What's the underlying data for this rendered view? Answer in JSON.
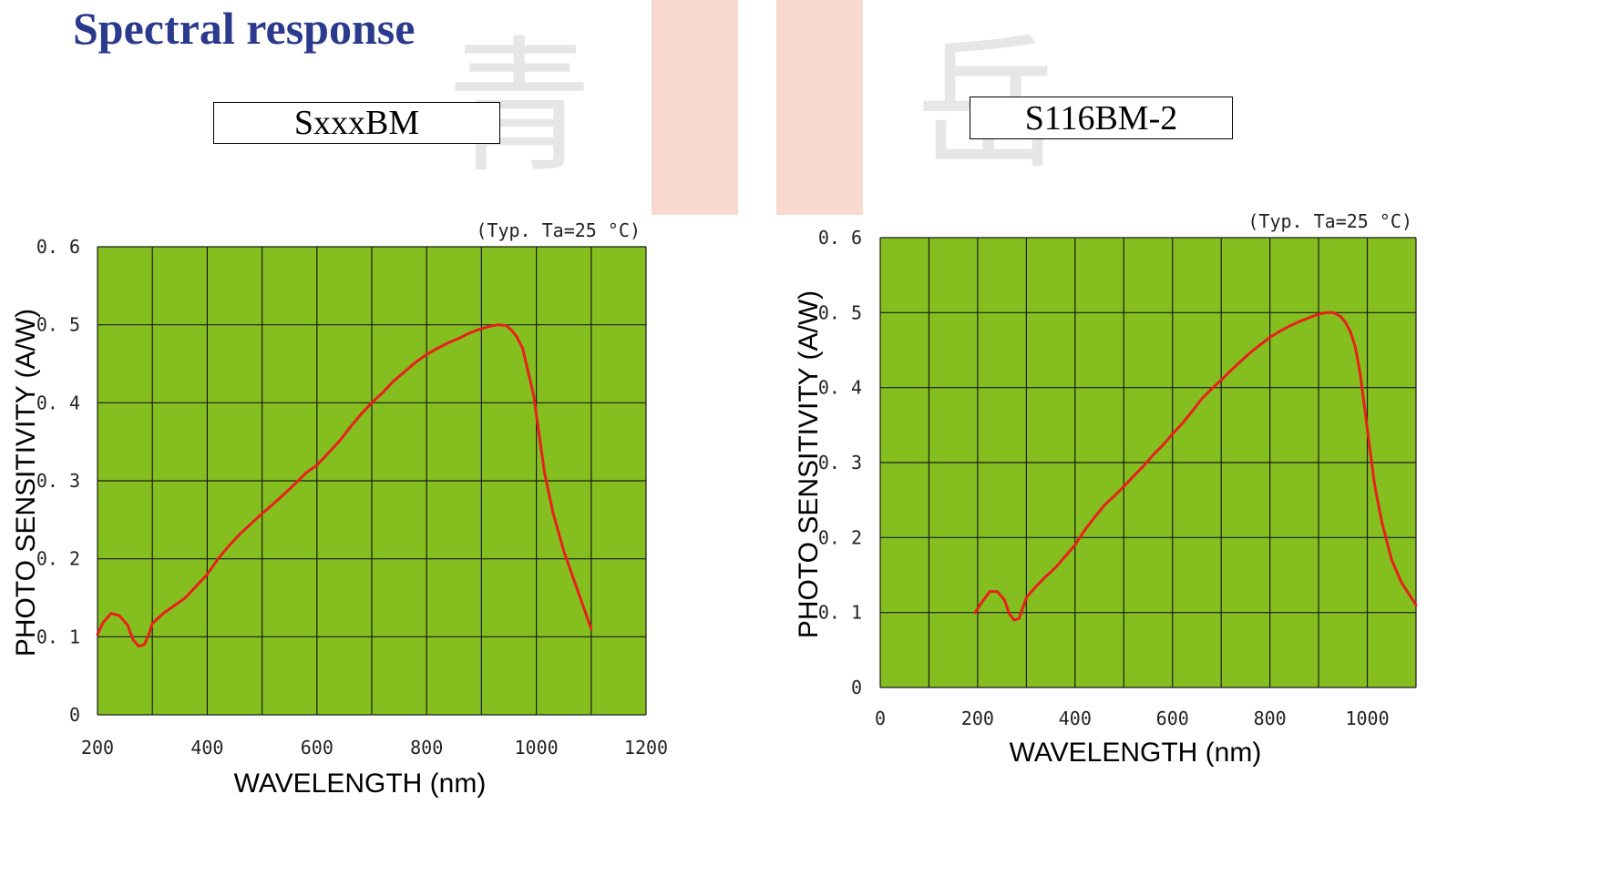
{
  "title": "Spectral response",
  "watermark": {
    "chars": [
      "青",
      "岳"
    ],
    "color": "#f9d9cf"
  },
  "colors": {
    "plot_bg": "#85bf1f",
    "grid": "#1a1a1a",
    "curve": "#e8201c",
    "title": "#2b3a8c"
  },
  "chart_data": [
    {
      "type": "line",
      "model": "SxxxBM",
      "condition": "(Typ.  Ta=25 °C)",
      "xlabel": "WAVELENGTH  (nm)",
      "ylabel": "PHOTO SENSITIVITY (A/W)",
      "xlim": [
        200,
        1200
      ],
      "ylim": [
        0,
        0.6
      ],
      "x_ticks": [
        200,
        400,
        600,
        800,
        1000,
        1200
      ],
      "x_tick_labels": [
        "200",
        "400",
        "600",
        "800",
        "1000",
        "1200"
      ],
      "y_ticks": [
        0,
        0.1,
        0.2,
        0.3,
        0.4,
        0.5,
        0.6
      ],
      "y_tick_labels": [
        "0",
        "0. 1",
        "0. 2",
        "0. 3",
        "0. 4",
        "0. 5",
        "0. 6"
      ],
      "grid_x_step": 100,
      "grid": true,
      "series": [
        {
          "x": [
            200,
            210,
            225,
            240,
            255,
            265,
            275,
            285,
            292,
            300,
            320,
            340,
            360,
            380,
            400,
            420,
            440,
            460,
            480,
            500,
            520,
            540,
            560,
            580,
            600,
            620,
            640,
            660,
            680,
            700,
            720,
            740,
            760,
            780,
            800,
            820,
            840,
            860,
            880,
            900,
            915,
            930,
            945,
            955,
            965,
            975,
            985,
            995,
            1005,
            1015,
            1030,
            1050,
            1070,
            1090,
            1100
          ],
          "y": [
            0.103,
            0.118,
            0.13,
            0.127,
            0.115,
            0.096,
            0.088,
            0.09,
            0.1,
            0.117,
            0.13,
            0.14,
            0.15,
            0.165,
            0.18,
            0.2,
            0.217,
            0.232,
            0.245,
            0.258,
            0.27,
            0.283,
            0.296,
            0.31,
            0.32,
            0.335,
            0.35,
            0.368,
            0.385,
            0.4,
            0.413,
            0.428,
            0.44,
            0.452,
            0.462,
            0.47,
            0.477,
            0.483,
            0.49,
            0.495,
            0.498,
            0.5,
            0.499,
            0.493,
            0.484,
            0.47,
            0.44,
            0.41,
            0.36,
            0.31,
            0.26,
            0.21,
            0.17,
            0.13,
            0.11
          ]
        }
      ]
    },
    {
      "type": "line",
      "model": "S116BM-2",
      "condition": "(Typ.  Ta=25 °C)",
      "xlabel": "WAVELENGTH  (nm)",
      "ylabel": "PHOTO SENSITIVITY (A/W)",
      "xlim": [
        0,
        1100
      ],
      "ylim": [
        0,
        0.6
      ],
      "x_ticks": [
        0,
        200,
        400,
        600,
        800,
        1000
      ],
      "x_tick_labels": [
        "0",
        "200",
        "400",
        "600",
        "800",
        "1000"
      ],
      "y_ticks": [
        0,
        0.1,
        0.2,
        0.3,
        0.4,
        0.5,
        0.6
      ],
      "y_tick_labels": [
        "0",
        "0. 1",
        "0. 2",
        "0. 3",
        "0. 4",
        "0. 5",
        "0. 6"
      ],
      "grid_x_step": 100,
      "grid": true,
      "series": [
        {
          "x": [
            195,
            210,
            225,
            240,
            255,
            265,
            275,
            285,
            292,
            300,
            320,
            340,
            360,
            380,
            400,
            420,
            440,
            460,
            480,
            500,
            520,
            540,
            560,
            580,
            600,
            620,
            640,
            660,
            680,
            700,
            720,
            740,
            760,
            780,
            800,
            820,
            840,
            860,
            880,
            900,
            915,
            930,
            945,
            955,
            965,
            975,
            985,
            995,
            1005,
            1015,
            1030,
            1050,
            1070,
            1090,
            1100
          ],
          "y": [
            0.1,
            0.115,
            0.128,
            0.128,
            0.117,
            0.098,
            0.09,
            0.092,
            0.105,
            0.12,
            0.135,
            0.148,
            0.16,
            0.175,
            0.19,
            0.21,
            0.227,
            0.243,
            0.255,
            0.268,
            0.282,
            0.295,
            0.31,
            0.323,
            0.338,
            0.352,
            0.368,
            0.385,
            0.398,
            0.41,
            0.423,
            0.435,
            0.447,
            0.457,
            0.467,
            0.475,
            0.482,
            0.488,
            0.493,
            0.498,
            0.5,
            0.5,
            0.495,
            0.487,
            0.475,
            0.455,
            0.42,
            0.37,
            0.32,
            0.27,
            0.22,
            0.17,
            0.14,
            0.12,
            0.11
          ]
        }
      ]
    }
  ]
}
